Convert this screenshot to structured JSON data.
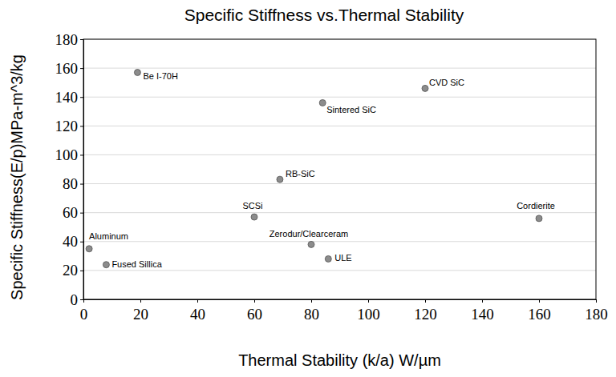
{
  "chart_data": {
    "type": "scatter",
    "title": "Specific Stiffness vs.Thermal Stability",
    "x_label": "Thermal Stability (k/a) W/µm",
    "y_label": "Specific Stiffness(E/p)MPa-m^3/kg",
    "labels": [
      "Be I-70H",
      "CVD SiC",
      "Sintered SiC",
      "RB-SiC",
      "SCSi",
      "Cordierite",
      "Aluminum",
      "Fused Sillica",
      "Zerodur/Clearceram",
      "ULE"
    ],
    "x": [
      19,
      120,
      84,
      69,
      60,
      160,
      2,
      8,
      80,
      86
    ],
    "values": [
      157,
      146,
      136,
      83,
      57,
      56,
      35,
      24,
      38,
      28
    ],
    "color": "#8c8c8c",
    "marker": "circle",
    "xlim": [
      0,
      180
    ],
    "xticks": [
      0,
      20,
      40,
      60,
      80,
      100,
      120,
      140,
      160,
      180
    ],
    "ylim": [
      0,
      180
    ],
    "yticks": [
      0,
      20,
      40,
      60,
      80,
      100,
      120,
      140,
      160,
      180
    ],
    "grid": true
  }
}
